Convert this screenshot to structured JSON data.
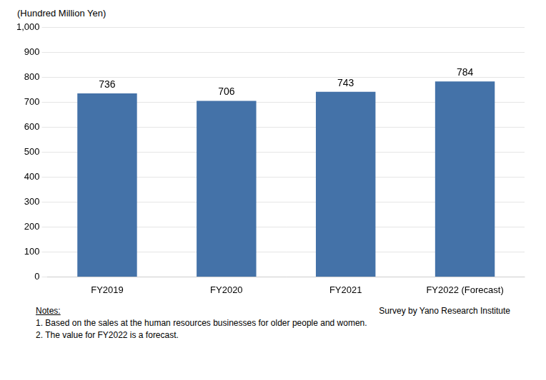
{
  "chart_data": {
    "type": "bar",
    "ylabel": "(Hundred Million Yen)",
    "categories": [
      "FY2019",
      "FY2020",
      "FY2021",
      "FY2022 (Forecast)"
    ],
    "values": [
      736,
      706,
      743,
      784
    ],
    "color": "#4472a8",
    "ylim": [
      0,
      1000
    ],
    "yticks": [
      0,
      100,
      200,
      300,
      400,
      500,
      600,
      700,
      800,
      900,
      {
        "value": 1000,
        "label": "1,000"
      }
    ],
    "grid": true,
    "data_labels": true,
    "annotations": [
      "Notes:",
      "1. Based on the sales at the human resources businesses for older people and women.",
      "2. The value for FY2022 is a forecast.",
      "Survey by Yano Research Institute"
    ]
  }
}
